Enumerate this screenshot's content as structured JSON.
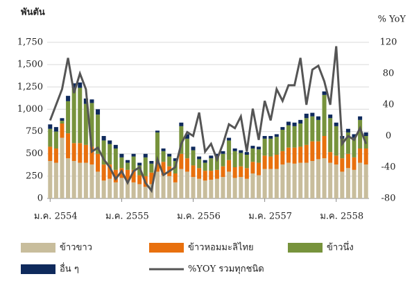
{
  "chart_data": {
    "type": "bar_line",
    "y_label": "พันตัน",
    "y2_label": "% YoY",
    "categories": [
      "ม.ค. 2554",
      null,
      null,
      null,
      null,
      null,
      null,
      null,
      null,
      null,
      null,
      null,
      "ม.ค. 2555",
      null,
      null,
      null,
      null,
      null,
      null,
      null,
      null,
      null,
      null,
      null,
      "ม.ค. 2556",
      null,
      null,
      null,
      null,
      null,
      null,
      null,
      null,
      null,
      null,
      null,
      "ม.ค. 2557",
      null,
      null,
      null,
      null,
      null,
      null,
      null,
      null,
      null,
      null,
      null,
      "ม.ค. 2558",
      null,
      null,
      null,
      null,
      null
    ],
    "series": [
      {
        "name": "ข้าวขาว",
        "color": "#c8bd9c",
        "values": [
          420,
          400,
          680,
          450,
          420,
          400,
          400,
          380,
          300,
          200,
          220,
          180,
          230,
          200,
          180,
          160,
          130,
          160,
          300,
          260,
          250,
          180,
          330,
          300,
          240,
          220,
          200,
          210,
          220,
          240,
          300,
          230,
          240,
          220,
          280,
          260,
          330,
          330,
          330,
          380,
          400,
          390,
          400,
          400,
          420,
          440,
          450,
          400,
          380,
          300,
          340,
          320,
          400,
          380
        ]
      },
      {
        "name": "ข้าวหอมมะลิไทย",
        "color": "#e8700e",
        "values": [
          160,
          160,
          160,
          280,
          200,
          220,
          200,
          200,
          200,
          180,
          160,
          140,
          110,
          120,
          140,
          100,
          120,
          130,
          110,
          150,
          110,
          100,
          170,
          150,
          130,
          120,
          110,
          100,
          100,
          120,
          130,
          120,
          120,
          120,
          130,
          140,
          150,
          140,
          160,
          150,
          170,
          180,
          180,
          200,
          220,
          200,
          250,
          120,
          100,
          150,
          160,
          140,
          160,
          180
        ]
      },
      {
        "name": "ข้าวนึ่ง",
        "color": "#77933c",
        "values": [
          200,
          190,
          30,
          360,
          620,
          620,
          460,
          490,
          440,
          270,
          230,
          240,
          120,
          80,
          150,
          110,
          210,
          100,
          330,
          120,
          110,
          140,
          310,
          220,
          170,
          100,
          90,
          140,
          150,
          140,
          220,
          180,
          150,
          150,
          150,
          150,
          190,
          200,
          200,
          240,
          250,
          240,
          260,
          300,
          280,
          240,
          460,
          380,
          330,
          220,
          240,
          220,
          320,
          140
        ]
      },
      {
        "name": "อื่น ๆ",
        "color": "#0f2a5c",
        "values": [
          50,
          50,
          30,
          60,
          50,
          60,
          60,
          40,
          60,
          50,
          40,
          40,
          40,
          30,
          30,
          30,
          40,
          30,
          20,
          30,
          30,
          30,
          40,
          50,
          40,
          30,
          30,
          30,
          30,
          30,
          30,
          30,
          30,
          30,
          30,
          30,
          30,
          30,
          30,
          30,
          40,
          40,
          40,
          50,
          40,
          40,
          40,
          40,
          40,
          30,
          40,
          40,
          40,
          40
        ]
      },
      {
        "name": "%YOY รวมทุกชนิด",
        "color": "#555555",
        "axis": "y2",
        "values": [
          20,
          40,
          60,
          100,
          55,
          80,
          60,
          -20,
          -15,
          -30,
          -40,
          -55,
          -45,
          -60,
          -45,
          -40,
          -60,
          -70,
          -30,
          -50,
          -45,
          -40,
          -10,
          5,
          0,
          30,
          -20,
          -10,
          -30,
          -10,
          15,
          10,
          25,
          -20,
          35,
          -5,
          45,
          20,
          60,
          45,
          65,
          65,
          100,
          40,
          85,
          90,
          70,
          40,
          115,
          -10,
          0,
          -5,
          10,
          -10
        ]
      }
    ],
    "ylim": [
      0,
      1750
    ],
    "yticks": [
      0,
      250,
      500,
      750,
      {
        "value": 1000,
        "label": "1,000"
      },
      {
        "value": 1250,
        "label": "1,250"
      },
      {
        "value": 1500,
        "label": "1,500"
      },
      {
        "value": 1750,
        "label": "1,750"
      }
    ],
    "y2lim": [
      -80,
      120
    ],
    "y2ticks": [
      -80,
      -40,
      0,
      40,
      80,
      120
    ],
    "grid": true
  }
}
